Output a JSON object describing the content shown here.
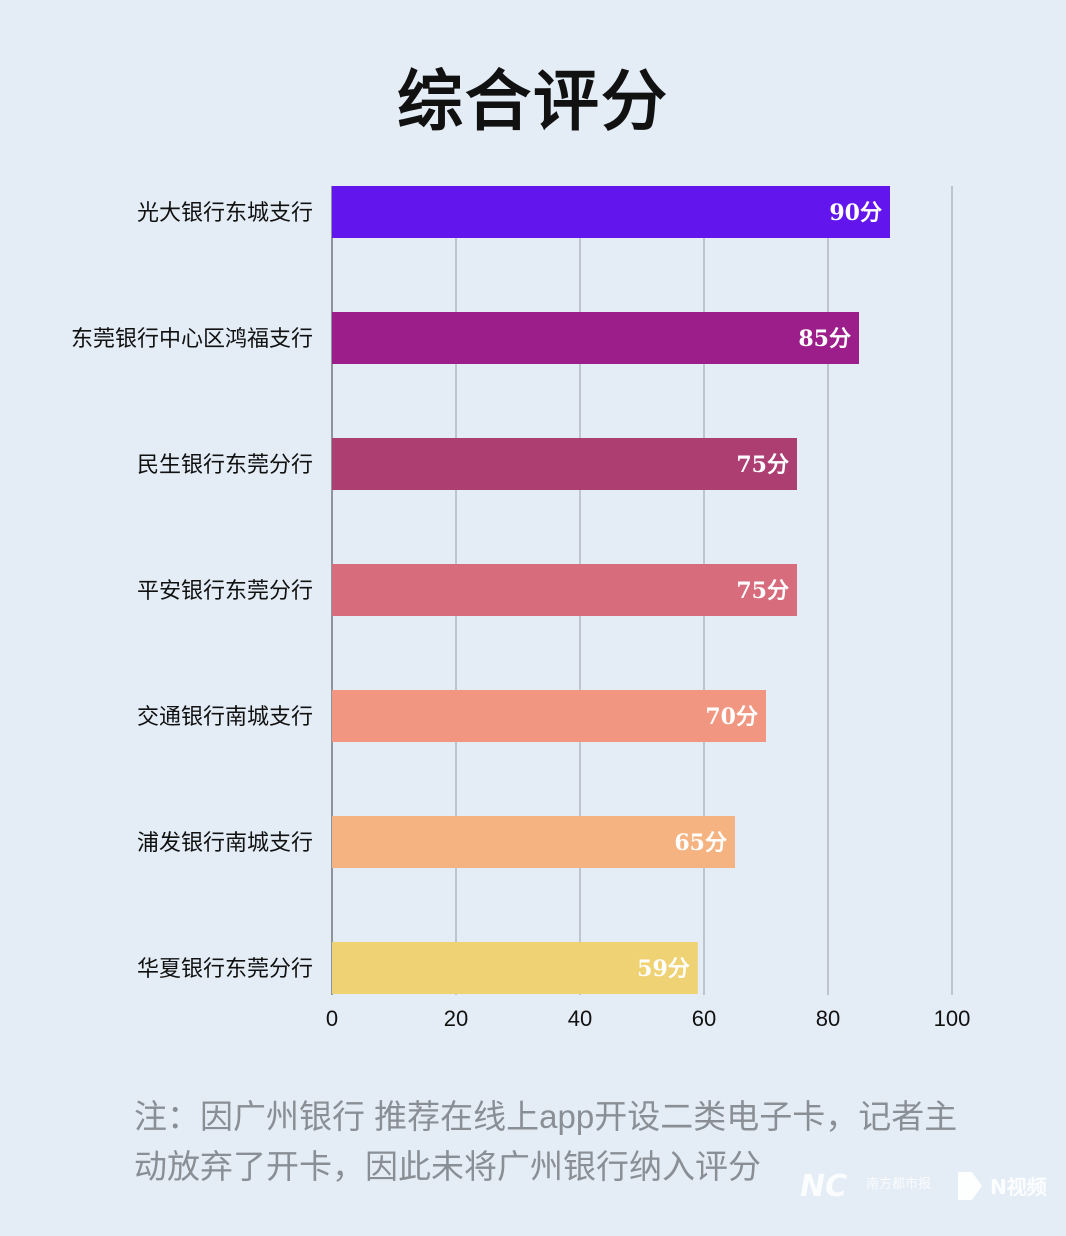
{
  "title": "综合评分",
  "chart_data": {
    "type": "bar",
    "orientation": "horizontal",
    "title": "综合评分",
    "xlabel": "",
    "ylabel": "",
    "xlim": [
      0,
      100
    ],
    "ticks": [
      0,
      20,
      40,
      60,
      80,
      100
    ],
    "grid": true,
    "categories": [
      "光大银行东城支行",
      "东莞银行中心区鸿福支行",
      "民生银行东莞分行",
      "平安银行东莞分行",
      "交通银行南城支行",
      "浦发银行南城支行",
      "华夏银行东莞分行"
    ],
    "values": [
      90,
      85,
      75,
      75,
      70,
      65,
      59
    ],
    "value_labels": [
      "90分",
      "85分",
      "75分",
      "75分",
      "70分",
      "65分",
      "59分"
    ],
    "colors": [
      "#6315ee",
      "#9c1e8a",
      "#ad3e72",
      "#d66c7c",
      "#f09681",
      "#f5b382",
      "#efd274"
    ]
  },
  "note": "注：因广州银行 推荐在线上app开设二类电子卡，记者主动放弃了开卡，因此未将广州银行纳入评分",
  "watermark": {
    "logo_text": "NC",
    "sub_text": "南方都市报",
    "video_text": "N视频"
  }
}
